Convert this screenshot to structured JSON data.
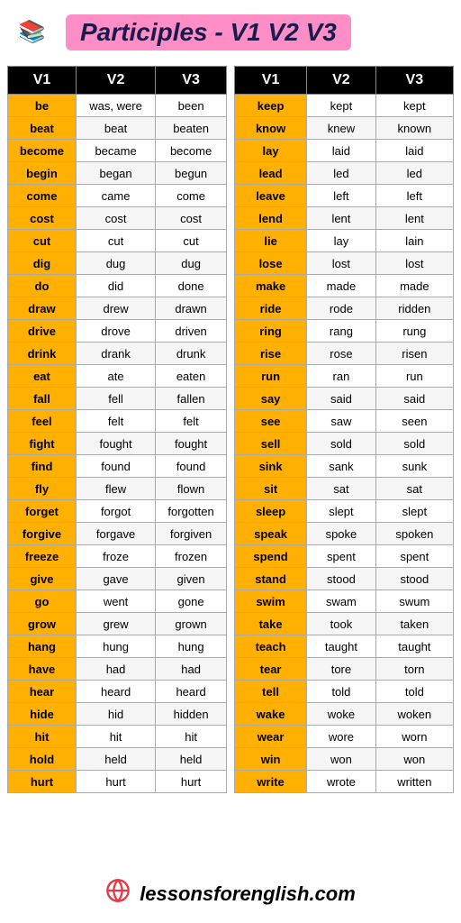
{
  "title": "Participles - V1 V2 V3",
  "footer": "lessonsforenglish.com",
  "headers": [
    "V1",
    "V2",
    "V3"
  ],
  "leftTable": [
    [
      "be",
      "was, were",
      "been"
    ],
    [
      "beat",
      "beat",
      "beaten"
    ],
    [
      "become",
      "became",
      "become"
    ],
    [
      "begin",
      "began",
      "begun"
    ],
    [
      "come",
      "came",
      "come"
    ],
    [
      "cost",
      "cost",
      "cost"
    ],
    [
      "cut",
      "cut",
      "cut"
    ],
    [
      "dig",
      "dug",
      "dug"
    ],
    [
      "do",
      "did",
      "done"
    ],
    [
      "draw",
      "drew",
      "drawn"
    ],
    [
      "drive",
      "drove",
      "driven"
    ],
    [
      "drink",
      "drank",
      "drunk"
    ],
    [
      "eat",
      "ate",
      "eaten"
    ],
    [
      "fall",
      "fell",
      "fallen"
    ],
    [
      "feel",
      "felt",
      "felt"
    ],
    [
      "fight",
      "fought",
      "fought"
    ],
    [
      "find",
      "found",
      "found"
    ],
    [
      "fly",
      "flew",
      "flown"
    ],
    [
      "forget",
      "forgot",
      "forgotten"
    ],
    [
      "forgive",
      "forgave",
      "forgiven"
    ],
    [
      "freeze",
      "froze",
      "frozen"
    ],
    [
      "give",
      "gave",
      "given"
    ],
    [
      "go",
      "went",
      "gone"
    ],
    [
      "grow",
      "grew",
      "grown"
    ],
    [
      "hang",
      "hung",
      "hung"
    ],
    [
      "have",
      "had",
      "had"
    ],
    [
      "hear",
      "heard",
      "heard"
    ],
    [
      "hide",
      "hid",
      "hidden"
    ],
    [
      "hit",
      "hit",
      "hit"
    ],
    [
      "hold",
      "held",
      "held"
    ],
    [
      "hurt",
      "hurt",
      "hurt"
    ]
  ],
  "rightTable": [
    [
      "keep",
      "kept",
      "kept"
    ],
    [
      "know",
      "knew",
      "known"
    ],
    [
      "lay",
      "laid",
      "laid"
    ],
    [
      "lead",
      "led",
      "led"
    ],
    [
      "leave",
      "left",
      "left"
    ],
    [
      "lend",
      "lent",
      "lent"
    ],
    [
      "lie",
      "lay",
      "lain"
    ],
    [
      "lose",
      "lost",
      "lost"
    ],
    [
      "make",
      "made",
      "made"
    ],
    [
      "ride",
      "rode",
      "ridden"
    ],
    [
      "ring",
      "rang",
      "rung"
    ],
    [
      "rise",
      "rose",
      "risen"
    ],
    [
      "run",
      "ran",
      "run"
    ],
    [
      "say",
      "said",
      "said"
    ],
    [
      "see",
      "saw",
      "seen"
    ],
    [
      "sell",
      "sold",
      "sold"
    ],
    [
      "sink",
      "sank",
      "sunk"
    ],
    [
      "sit",
      "sat",
      "sat"
    ],
    [
      "sleep",
      "slept",
      "slept"
    ],
    [
      "speak",
      "spoke",
      "spoken"
    ],
    [
      "spend",
      "spent",
      "spent"
    ],
    [
      "stand",
      "stood",
      "stood"
    ],
    [
      "swim",
      "swam",
      "swum"
    ],
    [
      "take",
      "took",
      "taken"
    ],
    [
      "teach",
      "taught",
      "taught"
    ],
    [
      "tear",
      "tore",
      "torn"
    ],
    [
      "tell",
      "told",
      "told"
    ],
    [
      "wake",
      "woke",
      "woken"
    ],
    [
      "wear",
      "wore",
      "worn"
    ],
    [
      "win",
      "won",
      "won"
    ],
    [
      "write",
      "wrote",
      "written"
    ]
  ],
  "colors": {
    "titleBg": "#ff8ec7",
    "titleText": "#1a1a4d",
    "headerBg": "#000000",
    "headerText": "#ffffff",
    "v1Bg": "#ffb000",
    "footerIcon": "#e63946"
  }
}
